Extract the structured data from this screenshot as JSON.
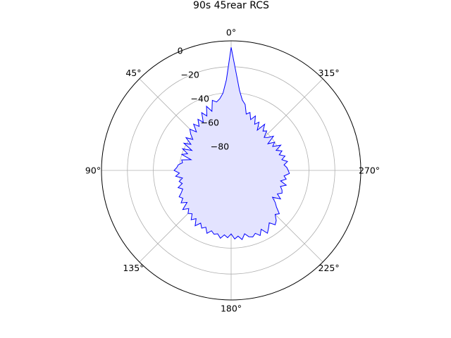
{
  "chart_data": {
    "type": "polar-area",
    "title": "90s 45rear RCS",
    "theta_zero": "top",
    "theta_direction": "counterclockwise",
    "theta_ticks": [
      "0°",
      "45°",
      "90°",
      "135°",
      "180°",
      "225°",
      "270°",
      "315°"
    ],
    "theta_tick_values": [
      0,
      45,
      90,
      135,
      180,
      225,
      270,
      315
    ],
    "r_ticks": [
      "−80",
      "−60",
      "−40",
      "−20",
      "0"
    ],
    "r_tick_values": [
      -80,
      -60,
      -40,
      -20,
      0
    ],
    "rlim": [
      -100,
      0
    ],
    "grid": true,
    "colors": {
      "line": "#0000ff",
      "fill": "#e3e3ff",
      "grid": "#b0b0b0",
      "frame": "#000000"
    },
    "series": [
      {
        "theta": [
          0,
          3,
          6,
          9,
          12,
          15,
          18,
          21,
          24,
          27,
          30,
          33,
          36,
          39,
          42,
          45,
          48,
          51,
          54,
          57,
          60,
          63,
          66,
          69,
          72,
          75,
          78,
          81,
          84,
          87,
          90,
          93,
          96,
          99,
          102,
          105,
          108,
          111,
          114,
          117,
          120,
          123,
          126,
          129,
          132,
          135,
          138,
          141,
          144,
          147,
          150,
          153,
          156,
          159,
          162,
          165,
          168,
          171,
          174,
          177,
          180,
          183,
          186,
          189,
          192,
          195,
          198,
          201,
          204,
          207,
          210,
          213,
          216,
          219,
          222,
          225,
          228,
          231,
          234,
          237,
          240,
          243,
          246,
          249,
          252,
          255,
          258,
          261,
          264,
          267,
          270,
          273,
          276,
          279,
          282,
          285,
          288,
          291,
          294,
          297,
          300,
          303,
          306,
          309,
          312,
          315,
          318,
          321,
          324,
          327,
          330,
          333,
          336,
          339,
          342,
          345,
          348,
          351,
          354,
          357
        ],
        "r": [
          -5,
          -30,
          -40,
          -44,
          -46,
          -44,
          -52,
          -47,
          -54,
          -50,
          -57,
          -53,
          -58,
          -54,
          -60,
          -55,
          -58,
          -62,
          -57,
          -63,
          -58,
          -66,
          -59,
          -64,
          -60,
          -68,
          -61,
          -62,
          -59,
          -58,
          -56,
          -60,
          -57,
          -62,
          -59,
          -61,
          -57,
          -60,
          -58,
          -55,
          -57,
          -54,
          -58,
          -52,
          -56,
          -53,
          -55,
          -51,
          -54,
          -49,
          -53,
          -50,
          -52,
          -48,
          -51,
          -49,
          -50,
          -47,
          -50,
          -48,
          -51,
          -47,
          -49,
          -46,
          -50,
          -47,
          -46,
          -48,
          -45,
          -49,
          -44,
          -47,
          -50,
          -46,
          -48,
          -52,
          -50,
          -55,
          -58,
          -62,
          -56,
          -60,
          -57,
          -58,
          -60,
          -56,
          -61,
          -57,
          -59,
          -55,
          -56,
          -57,
          -59,
          -56,
          -60,
          -57,
          -61,
          -58,
          -62,
          -57,
          -63,
          -60,
          -65,
          -58,
          -62,
          -64,
          -59,
          -61,
          -56,
          -63,
          -57,
          -60,
          -54,
          -58,
          -53,
          -55,
          -48,
          -45,
          -38,
          -25
        ]
      }
    ]
  }
}
